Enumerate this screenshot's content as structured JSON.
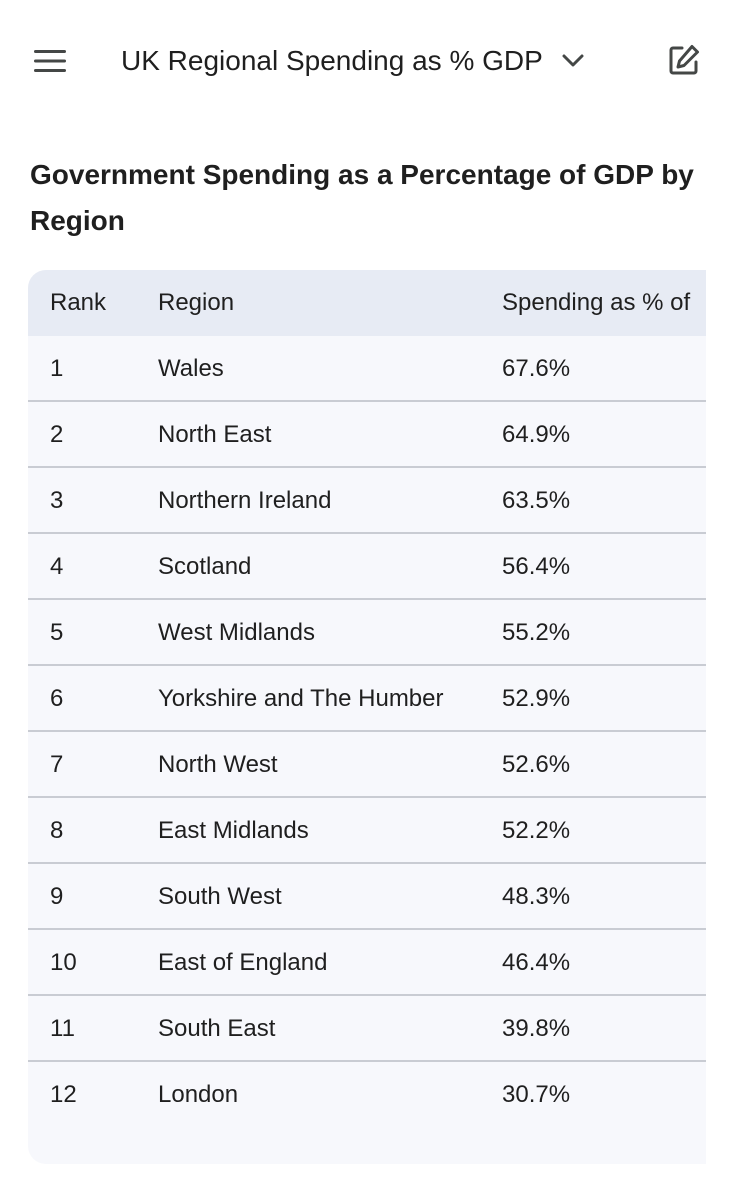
{
  "header": {
    "title": "UK Regional Spending as % GDP",
    "menu_icon": "hamburger-menu-icon",
    "dropdown_icon": "chevron-down-icon",
    "edit_icon": "edit-icon"
  },
  "content": {
    "heading": "Government Spending as a Percentage of GDP by Region"
  },
  "table": {
    "headers": {
      "rank": "Rank",
      "region": "Region",
      "spending": "Spending as % of"
    },
    "rows": [
      {
        "rank": "1",
        "region": "Wales",
        "spending": "67.6%"
      },
      {
        "rank": "2",
        "region": "North East",
        "spending": "64.9%"
      },
      {
        "rank": "3",
        "region": "Northern Ireland",
        "spending": "63.5%"
      },
      {
        "rank": "4",
        "region": "Scotland",
        "spending": "56.4%"
      },
      {
        "rank": "5",
        "region": "West Midlands",
        "spending": "55.2%"
      },
      {
        "rank": "6",
        "region": "Yorkshire and The Humber",
        "spending": "52.9%"
      },
      {
        "rank": "7",
        "region": "North West",
        "spending": "52.6%"
      },
      {
        "rank": "8",
        "region": "East Midlands",
        "spending": "52.2%"
      },
      {
        "rank": "9",
        "region": "South West",
        "spending": "48.3%"
      },
      {
        "rank": "10",
        "region": "East of England",
        "spending": "46.4%"
      },
      {
        "rank": "11",
        "region": "South East",
        "spending": "39.8%"
      },
      {
        "rank": "12",
        "region": "London",
        "spending": "30.7%"
      }
    ]
  },
  "colors": {
    "text": "#1f1f1f",
    "header_bg": "#e7ebf4",
    "table_bg": "#f7f8fc",
    "divider": "#c9ccd3",
    "icon": "#444746"
  }
}
